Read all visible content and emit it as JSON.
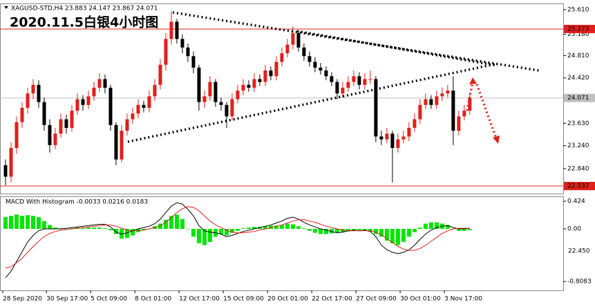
{
  "header": "XAGUSD-STD,H4  23.883 24.147 23.867 24.071",
  "title": "2020.11.5白银4小时图",
  "stray_label": "22.450",
  "chart_data": [
    {
      "type": "candlestick",
      "up_color": "#e0201b",
      "down_color": "#000000",
      "xlim": [
        -1,
        100.9
      ],
      "ylim": [
        22.405,
        25.718
      ],
      "yticks": [
        {
          "value": 25.61,
          "label": "25.610"
        },
        {
          "value": 25.18,
          "label": "25.180"
        },
        {
          "value": 24.81,
          "label": "24.810"
        },
        {
          "value": 24.42,
          "label": "24.420"
        },
        {
          "value": 23.63,
          "label": "23.630"
        },
        {
          "value": 23.24,
          "label": "23.240"
        },
        {
          "value": 22.84,
          "label": "22.840"
        }
      ],
      "levels": [
        {
          "value": 25.273,
          "color": "#e0201b"
        },
        {
          "value": 24.071,
          "color": "#c0c0c0"
        },
        {
          "value": 22.537,
          "color": "#e0201b"
        }
      ],
      "open": [
        22.9,
        22.7,
        23.2,
        23.65,
        23.9,
        24.15,
        24.3,
        24.0,
        23.6,
        23.25,
        23.45,
        23.7,
        23.55,
        23.85,
        24.05,
        23.95,
        24.1,
        24.25,
        24.4,
        24.25,
        23.6,
        23.0,
        23.5,
        23.7,
        23.8,
        23.95,
        23.9,
        24.1,
        24.3,
        24.65,
        25.1,
        25.4,
        25.1,
        24.95,
        24.8,
        24.6,
        24.0,
        24.1,
        24.35,
        24.0,
        23.95,
        23.75,
        24.05,
        24.2,
        24.3,
        24.25,
        24.4,
        24.35,
        24.55,
        24.45,
        24.7,
        24.85,
        25.0,
        25.2,
        24.95,
        24.8,
        24.7,
        24.6,
        24.55,
        24.45,
        24.35,
        24.15,
        24.25,
        24.35,
        24.45,
        24.3,
        24.4,
        24.4,
        23.4,
        23.35,
        23.45,
        23.2,
        23.35,
        23.4,
        23.55,
        23.7,
        23.95,
        24.05,
        23.95,
        24.1,
        24.15,
        24.2,
        23.5,
        23.75,
        23.85
      ],
      "high": [
        23.0,
        23.3,
        23.75,
        24.0,
        24.25,
        24.4,
        24.38,
        24.08,
        23.7,
        23.55,
        23.8,
        23.78,
        23.95,
        24.15,
        24.12,
        24.2,
        24.35,
        24.5,
        24.48,
        24.3,
        23.65,
        23.6,
        23.8,
        23.9,
        24.05,
        24.02,
        24.2,
        24.4,
        24.75,
        25.2,
        25.58,
        25.45,
        25.18,
        25.02,
        24.88,
        24.65,
        24.2,
        24.45,
        24.4,
        24.08,
        24.0,
        24.15,
        24.3,
        24.4,
        24.38,
        24.5,
        24.48,
        24.65,
        24.62,
        24.8,
        24.95,
        25.1,
        25.32,
        25.25,
        25.02,
        24.88,
        24.78,
        24.68,
        24.62,
        24.52,
        24.4,
        24.35,
        24.45,
        24.55,
        24.52,
        24.5,
        24.55,
        24.45,
        23.5,
        23.55,
        23.5,
        23.45,
        23.5,
        23.65,
        23.8,
        24.05,
        24.15,
        24.12,
        24.2,
        24.25,
        24.3,
        24.45,
        23.85,
        23.95,
        24.15
      ],
      "low": [
        22.55,
        22.6,
        23.1,
        23.55,
        23.8,
        24.05,
        23.9,
        23.5,
        23.12,
        23.18,
        23.38,
        23.45,
        23.48,
        23.78,
        23.85,
        23.88,
        24.02,
        24.18,
        24.15,
        23.5,
        22.9,
        22.95,
        23.42,
        23.62,
        23.72,
        23.82,
        23.82,
        24.02,
        24.22,
        24.55,
        25.0,
        25.02,
        24.85,
        24.7,
        24.5,
        23.85,
        23.9,
        24.02,
        23.92,
        23.85,
        23.55,
        23.68,
        23.98,
        24.12,
        24.18,
        24.18,
        24.28,
        24.28,
        24.38,
        24.38,
        24.62,
        24.78,
        24.92,
        24.88,
        24.72,
        24.62,
        24.52,
        24.48,
        24.38,
        24.28,
        24.05,
        24.08,
        24.18,
        24.28,
        24.22,
        24.22,
        24.32,
        23.3,
        23.25,
        23.28,
        22.6,
        23.12,
        23.28,
        23.32,
        23.48,
        23.62,
        23.88,
        23.88,
        23.88,
        24.02,
        24.08,
        23.25,
        23.42,
        23.68,
        23.78
      ],
      "close": [
        22.7,
        23.2,
        23.65,
        23.9,
        24.15,
        24.3,
        24.0,
        23.6,
        23.25,
        23.45,
        23.7,
        23.55,
        23.85,
        24.05,
        23.95,
        24.1,
        24.25,
        24.4,
        24.25,
        23.6,
        23.0,
        23.5,
        23.7,
        23.8,
        23.95,
        23.9,
        24.1,
        24.3,
        24.65,
        25.1,
        25.4,
        25.1,
        24.95,
        24.8,
        24.6,
        24.0,
        24.1,
        24.35,
        24.0,
        23.95,
        23.75,
        24.05,
        24.2,
        24.3,
        24.25,
        24.4,
        24.35,
        24.55,
        24.45,
        24.7,
        24.85,
        25.0,
        25.2,
        24.95,
        24.8,
        24.7,
        24.6,
        24.55,
        24.45,
        24.35,
        24.15,
        24.25,
        24.35,
        24.45,
        24.3,
        24.4,
        24.4,
        23.4,
        23.35,
        23.45,
        23.2,
        23.35,
        23.4,
        23.55,
        23.7,
        23.95,
        24.05,
        23.95,
        24.1,
        24.15,
        24.2,
        23.5,
        23.75,
        23.85,
        24.07
      ]
    },
    {
      "type": "macd",
      "title": "MACD With Histogram -0.0033 0.0216 0.0183",
      "xlim": [
        -1,
        100.9
      ],
      "ylim": [
        -0.944,
        0.488
      ],
      "yticks": [
        0.424,
        {
          "value": 0,
          "label": "0.00"
        },
        -0.8083
      ],
      "xticks": [
        {
          "value": -0.5,
          "label": "28 Sep 2020"
        },
        {
          "value": 7.4,
          "label": "30 Sep 17:00"
        },
        {
          "value": 15.4,
          "label": "5 Oct 09:00"
        },
        {
          "value": 23.4,
          "label": "8 Oct 01:00"
        },
        {
          "value": 31.4,
          "label": "12 Oct 17:00"
        },
        {
          "value": 39.4,
          "label": "15 Oct 09:00"
        },
        {
          "value": 47.4,
          "label": "20 Oct 01:00"
        },
        {
          "value": 55.4,
          "label": "22 Oct 17:00"
        },
        {
          "value": 63.4,
          "label": "27 Oct 09:00"
        },
        {
          "value": 71.4,
          "label": "30 Oct 01:00"
        },
        {
          "value": 79.4,
          "label": "3 Nov 17:00"
        }
      ],
      "series": [
        {
          "kind": "histogram",
          "color": "#00e600",
          "values": [
            0.18,
            0.2,
            0.22,
            0.2,
            0.21,
            0.2,
            0.18,
            0.12,
            0.06,
            0.02,
            0.01,
            0.0,
            0.01,
            0.02,
            0.01,
            0.02,
            0.02,
            0.02,
            0.01,
            -0.02,
            -0.08,
            -0.15,
            -0.14,
            -0.1,
            -0.05,
            -0.02,
            0.0,
            0.04,
            0.08,
            0.14,
            0.2,
            0.22,
            0.15,
            0.0,
            -0.12,
            -0.22,
            -0.25,
            -0.2,
            -0.12,
            -0.08,
            -0.1,
            -0.06,
            -0.03,
            0.01,
            0.02,
            0.03,
            0.03,
            0.04,
            0.05,
            0.05,
            0.06,
            0.08,
            0.07,
            0.04,
            0.01,
            -0.03,
            -0.06,
            -0.08,
            -0.08,
            -0.07,
            -0.06,
            -0.05,
            -0.04,
            -0.03,
            -0.02,
            -0.03,
            -0.04,
            -0.08,
            -0.12,
            -0.18,
            -0.22,
            -0.25,
            -0.2,
            -0.12,
            -0.05,
            0.02,
            0.08,
            0.1,
            0.1,
            0.08,
            0.06,
            0.0,
            -0.03,
            -0.03,
            -0.02
          ]
        },
        {
          "kind": "line",
          "color": "#000000",
          "values": [
            -0.75,
            -0.65,
            -0.5,
            -0.35,
            -0.2,
            -0.1,
            -0.03,
            0.0,
            0.0,
            0.0,
            0.0,
            0.01,
            0.02,
            0.03,
            0.04,
            0.05,
            0.06,
            0.07,
            0.07,
            0.03,
            -0.05,
            -0.08,
            -0.06,
            -0.03,
            0.0,
            0.02,
            0.04,
            0.08,
            0.15,
            0.25,
            0.35,
            0.4,
            0.38,
            0.3,
            0.2,
            0.05,
            -0.03,
            -0.05,
            -0.06,
            -0.08,
            -0.12,
            -0.1,
            -0.07,
            -0.04,
            -0.02,
            0.0,
            0.02,
            0.04,
            0.06,
            0.09,
            0.12,
            0.16,
            0.18,
            0.15,
            0.1,
            0.06,
            0.03,
            0.0,
            -0.02,
            -0.04,
            -0.06,
            -0.05,
            -0.03,
            -0.02,
            -0.03,
            -0.02,
            -0.04,
            -0.12,
            -0.25,
            -0.32,
            -0.36,
            -0.38,
            -0.36,
            -0.32,
            -0.25,
            -0.16,
            -0.08,
            -0.02,
            0.02,
            0.04,
            0.05,
            0.02,
            0.0,
            0.0,
            0.01
          ]
        },
        {
          "kind": "line",
          "color": "#e0201b",
          "values": [
            -0.6,
            -0.58,
            -0.52,
            -0.45,
            -0.36,
            -0.27,
            -0.19,
            -0.12,
            -0.07,
            -0.04,
            -0.02,
            -0.01,
            0.0,
            0.01,
            0.02,
            0.03,
            0.04,
            0.05,
            0.06,
            0.06,
            0.04,
            0.01,
            -0.02,
            -0.03,
            -0.03,
            -0.02,
            0.0,
            0.02,
            0.05,
            0.1,
            0.17,
            0.25,
            0.31,
            0.34,
            0.33,
            0.28,
            0.2,
            0.12,
            0.06,
            0.02,
            -0.02,
            -0.05,
            -0.06,
            -0.06,
            -0.05,
            -0.04,
            -0.02,
            0.0,
            0.02,
            0.04,
            0.06,
            0.09,
            0.12,
            0.14,
            0.14,
            0.12,
            0.1,
            0.07,
            0.04,
            0.02,
            0.0,
            -0.02,
            -0.03,
            -0.03,
            -0.03,
            -0.03,
            -0.03,
            -0.05,
            -0.09,
            -0.15,
            -0.21,
            -0.27,
            -0.31,
            -0.33,
            -0.33,
            -0.3,
            -0.25,
            -0.19,
            -0.13,
            -0.07,
            -0.03,
            0.0,
            0.01,
            0.01,
            0.01
          ]
        }
      ]
    }
  ]
}
